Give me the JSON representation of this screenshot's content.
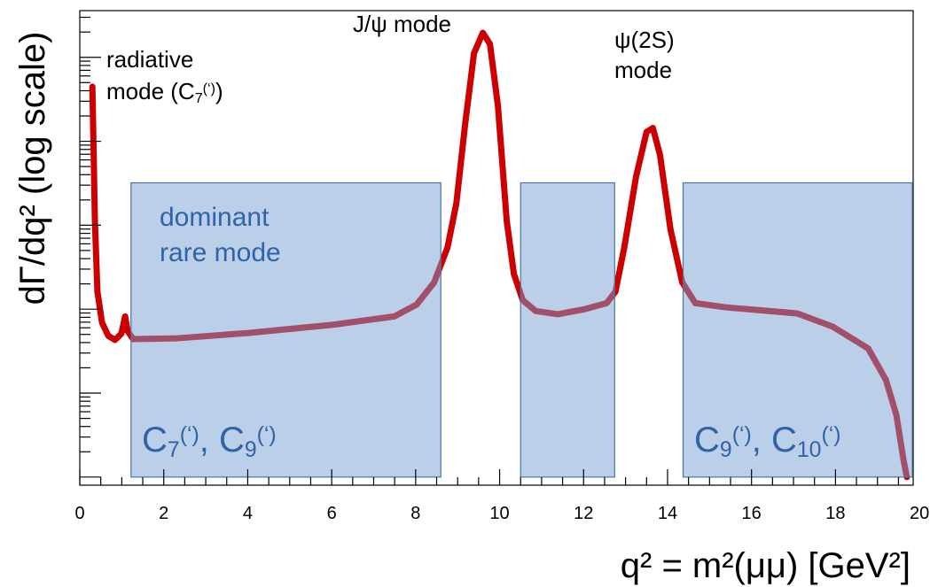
{
  "chart_data": {
    "type": "line",
    "xlabel": "q² = m²(μμ) [GeV²]",
    "ylabel": "dΓ/dq² (log scale)",
    "ylog": true,
    "color": "#cc0000",
    "xlim": [
      0,
      19.85
    ],
    "ylim": [
      0.8,
      360000
    ],
    "xticks": [
      0,
      2,
      4,
      6,
      8,
      10,
      12,
      14,
      16,
      18,
      20
    ],
    "xminor_ticks": [
      0.5,
      1,
      1.5,
      2.5,
      3,
      3.5,
      4.5,
      5,
      5.5,
      6.5,
      7,
      7.5,
      8.5,
      9,
      9.5,
      10.5,
      11,
      11.5,
      12.5,
      13,
      13.5,
      14.5,
      15,
      15.5,
      16.5,
      17,
      17.5,
      18.5,
      19,
      19.5
    ],
    "yticks": [
      1,
      2,
      3,
      4,
      5,
      6,
      7,
      8,
      9,
      10,
      20,
      30,
      40,
      50,
      60,
      70,
      80,
      90,
      100,
      200,
      300,
      400,
      500,
      600,
      700,
      800,
      900,
      1000,
      2000,
      3000,
      4000,
      5000,
      6000,
      7000,
      8000,
      9000,
      10000,
      20000,
      30000,
      40000,
      50000,
      60000,
      70000,
      80000,
      90000,
      100000,
      200000,
      300000
    ],
    "x": [
      0.3,
      0.36,
      0.42,
      0.53,
      0.68,
      0.84,
      0.99,
      1.08,
      1.14,
      1.27,
      2.32,
      4.01,
      6.01,
      7.49,
      8.02,
      8.44,
      8.76,
      8.97,
      9.18,
      9.39,
      9.6,
      9.77,
      9.96,
      10.17,
      10.34,
      10.55,
      10.86,
      11.39,
      12.03,
      12.55,
      12.76,
      12.97,
      13.25,
      13.5,
      13.65,
      13.82,
      14.07,
      14.35,
      14.66,
      15.4,
      17.09,
      17.93,
      18.78,
      19.2,
      19.45,
      19.62,
      19.7
    ],
    "values": [
      44700,
      1120,
      162,
      69,
      48,
      43,
      51,
      82,
      55,
      44,
      45,
      52,
      65,
      82,
      113,
      208,
      545,
      1830,
      16200,
      112000,
      196000,
      144000,
      26300,
      1120,
      263,
      128,
      95,
      87,
      100,
      118,
      162,
      545,
      3800,
      12900,
      14400,
      6900,
      890,
      208,
      118,
      105,
      89,
      62,
      34,
      14.4,
      5.5,
      1.6,
      1.0
    ],
    "regions": [
      {
        "xlim": [
          1.22,
          8.6
        ],
        "ylim": [
          1,
          3200
        ],
        "labels": [
          {
            "lines": [
              [
                [
                  "dominant",
                  ""
                ]
              ],
              [
                [
                  "rare mode",
                  ""
                ]
              ]
            ]
          },
          {
            "lines": [
              [
                [
                  "C",
                  ""
                ],
                [
                  "7",
                  "sub"
                ],
                [
                  "(‘)",
                  "sup"
                ],
                [
                  ", C",
                  ""
                ],
                [
                  "9",
                  "sub"
                ],
                [
                  "(‘)",
                  "sup"
                ]
              ]
            ]
          }
        ]
      },
      {
        "xlim": [
          10.5,
          12.74
        ],
        "ylim": [
          1,
          3200
        ],
        "labels": []
      },
      {
        "xlim": [
          14.37,
          19.83
        ],
        "ylim": [
          1,
          3200
        ],
        "labels": [
          {
            "lines": [
              [
                [
                  "C",
                  ""
                ],
                [
                  "9",
                  "sub"
                ],
                [
                  "(‘)",
                  "sup"
                ],
                [
                  ", C",
                  ""
                ],
                [
                  "10",
                  "sub"
                ],
                [
                  "(‘)",
                  "sup"
                ]
              ]
            ]
          }
        ]
      }
    ],
    "annotations": [
      {
        "lines": [
          [
            [
              "J/ψ mode",
              ""
            ]
          ]
        ]
      },
      {
        "lines": [
          [
            [
              "ψ(2S)",
              ""
            ]
          ],
          [
            [
              "mode",
              ""
            ]
          ]
        ]
      },
      {
        "lines": [
          [
            [
              "radiative",
              ""
            ]
          ],
          [
            [
              "mode (C",
              ""
            ],
            [
              "7",
              "sub"
            ],
            [
              "(‘)",
              "sup"
            ],
            [
              ")",
              ""
            ]
          ]
        ]
      }
    ]
  }
}
